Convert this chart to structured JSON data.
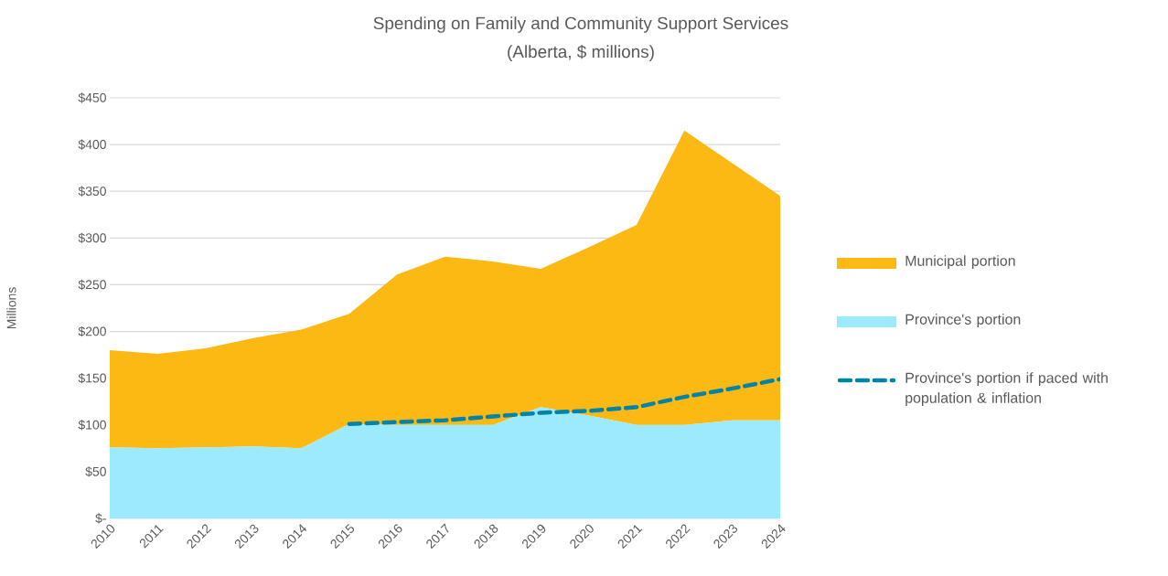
{
  "chart_data": {
    "type": "area",
    "title": "Spending on Family and Community Support Services",
    "subtitle": "(Alberta, $ millions)",
    "ylabel": "Millions",
    "categories": [
      "2010",
      "2011",
      "2012",
      "2013",
      "2014",
      "2015",
      "2016",
      "2017",
      "2018",
      "2019",
      "2020",
      "2021",
      "2022",
      "2023",
      "2024"
    ],
    "stacked": true,
    "series": [
      {
        "name": "Province's portion",
        "color": "#9beafd",
        "values": [
          76,
          75,
          76,
          77,
          75,
          101,
          100,
          100,
          100,
          119,
          110,
          100,
          100,
          105,
          105
        ]
      },
      {
        "name": "Municipal portion",
        "color": "#fcb813",
        "values": [
          104,
          101,
          106,
          116,
          127,
          118,
          161,
          180,
          175,
          148,
          180,
          214,
          315,
          275,
          240
        ]
      },
      {
        "name": "Province's portion if paced with population & inflation",
        "type": "line",
        "line_style": "dashed",
        "color": "#0083a9",
        "values": [
          null,
          null,
          null,
          null,
          null,
          101,
          103,
          105,
          109,
          113,
          115,
          119,
          130,
          139,
          149
        ]
      }
    ],
    "ylim": [
      0,
      450
    ],
    "yticks": [
      {
        "value": 0,
        "label": "$-"
      },
      {
        "value": 50,
        "label": "$50"
      },
      {
        "value": 100,
        "label": "$100"
      },
      {
        "value": 150,
        "label": "$150"
      },
      {
        "value": 200,
        "label": "$200"
      },
      {
        "value": 250,
        "label": "$250"
      },
      {
        "value": 300,
        "label": "$300"
      },
      {
        "value": 350,
        "label": "$350"
      },
      {
        "value": 400,
        "label": "$400"
      },
      {
        "value": 450,
        "label": "$450"
      }
    ],
    "grid": "y",
    "legend": "right"
  }
}
